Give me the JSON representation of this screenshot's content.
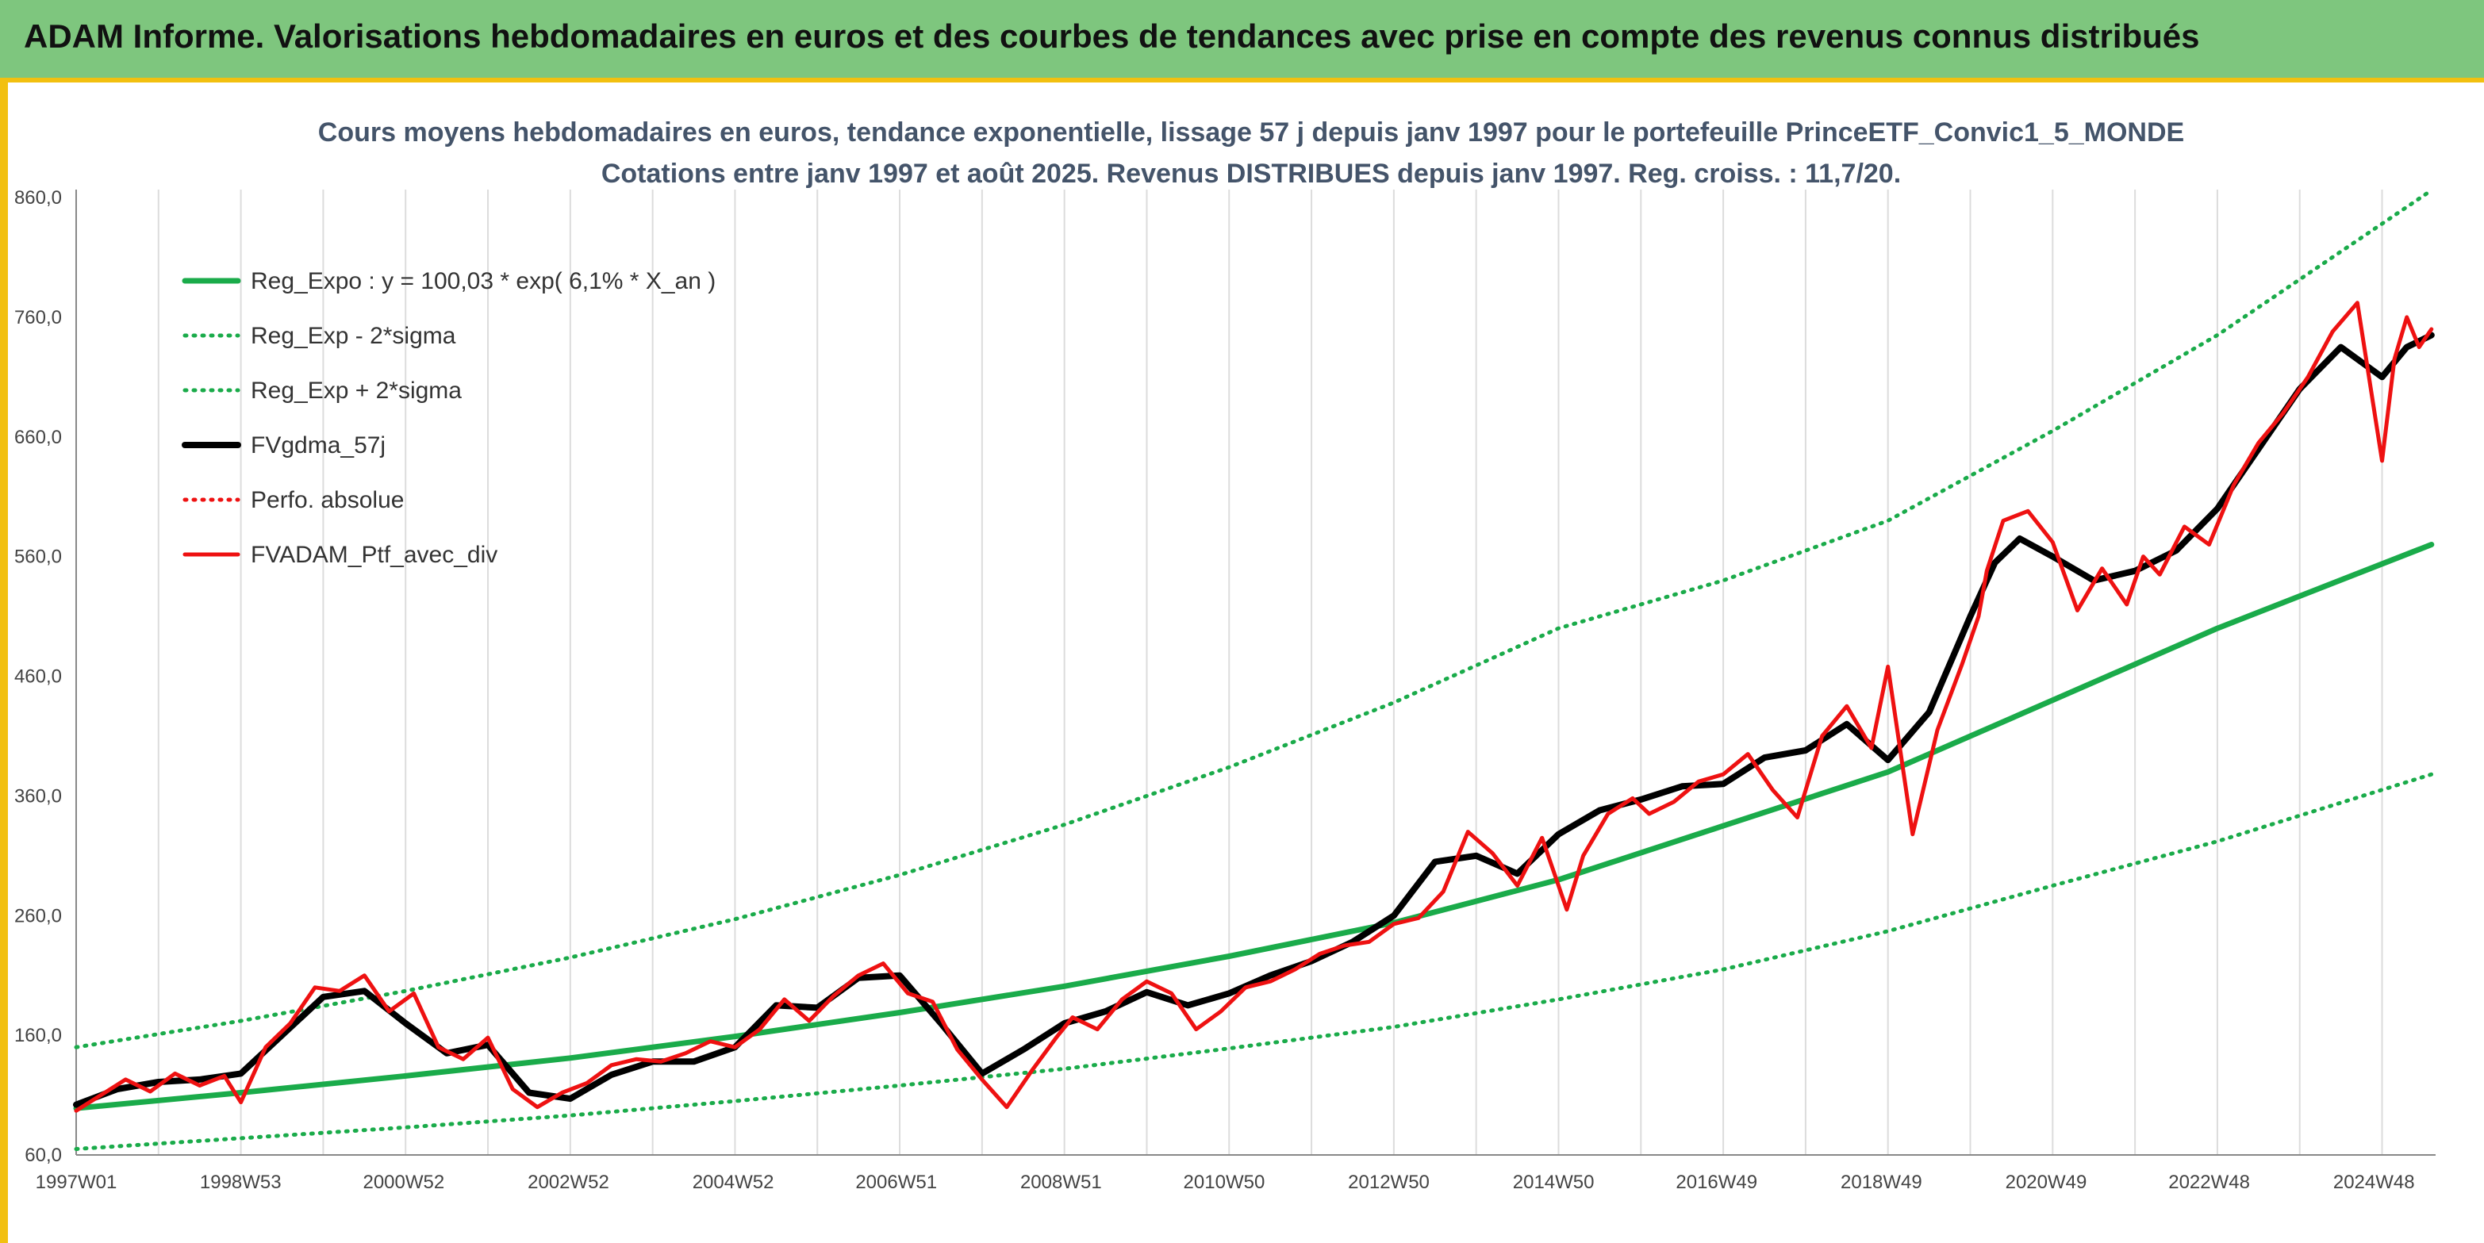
{
  "header": {
    "title": "ADAM Informe. Valorisations hebdomadaires en euros et des courbes de tendances avec prise en compte des revenus connus distribués"
  },
  "chart_data": {
    "type": "line",
    "title": "Cours moyens hebdomadaires en euros, tendance exponentielle, lissage 57 j depuis janv 1997 pour le portefeuille PrinceETF_Convic1_5_MONDE",
    "subtitle": "Cotations entre janv 1997 et août 2025. Revenus DISTRIBUES depuis janv 1997. Reg. croiss. : 11,7/20.",
    "xlabel": "",
    "ylabel": "",
    "ylim": [
      60,
      860
    ],
    "y_ticks": [
      "60,0",
      "160,0",
      "260,0",
      "360,0",
      "460,0",
      "560,0",
      "660,0",
      "760,0",
      "860,0"
    ],
    "x_range": [
      "1997W01",
      "2025W35"
    ],
    "x_ticks": [
      "1997W01",
      "1998W53",
      "2000W52",
      "2002W52",
      "2004W52",
      "2006W51",
      "2008W51",
      "2010W50",
      "2012W50",
      "2014W50",
      "2016W49",
      "2018W49",
      "2020W49",
      "2022W48",
      "2024W48"
    ],
    "grid": "vertical",
    "legend_position": "top-left",
    "colors": {
      "trend": "#1aab4a",
      "smoothed": "#000000",
      "portfolio": "#ee1111",
      "banner": "#7ec67e",
      "accent": "#f2c010"
    },
    "series": [
      {
        "name": "Reg_Expo : y = 100,03 * exp( 6,1% *  X_an )",
        "style": "solid",
        "color": "#1aab4a",
        "x": [
          1997.0,
          1999.0,
          2001.0,
          2003.0,
          2005.0,
          2007.0,
          2009.0,
          2011.0,
          2013.0,
          2015.0,
          2017.0,
          2019.0,
          2021.0,
          2023.0,
          2025.6
        ],
        "values": [
          99,
          112,
          126,
          141,
          159,
          179,
          201,
          226,
          254,
          290,
          335,
          380,
          440,
          500,
          570
        ]
      },
      {
        "name": "Reg_Exp - 2*sigma",
        "style": "dotted",
        "color": "#1aab4a",
        "x": [
          1997.0,
          1999.0,
          2001.0,
          2003.0,
          2005.0,
          2007.0,
          2009.0,
          2011.0,
          2013.0,
          2015.0,
          2017.0,
          2019.0,
          2021.0,
          2023.0,
          2025.6
        ],
        "values": [
          65,
          74,
          83,
          93,
          105,
          118,
          132,
          149,
          167,
          190,
          215,
          247,
          285,
          322,
          378
        ]
      },
      {
        "name": "Reg_Exp + 2*sigma",
        "style": "dotted",
        "color": "#1aab4a",
        "x": [
          1997.0,
          1999.0,
          2001.0,
          2003.0,
          2005.0,
          2007.0,
          2009.0,
          2011.0,
          2013.0,
          2015.0,
          2017.0,
          2019.0,
          2021.0,
          2023.0,
          2025.6
        ],
        "values": [
          150,
          172,
          197,
          225,
          257,
          294,
          336,
          384,
          438,
          500,
          540,
          590,
          665,
          745,
          866
        ]
      },
      {
        "name": "FVgdma_57j",
        "style": "solid",
        "color": "#000000",
        "x": [
          1997.0,
          1997.5,
          1998.0,
          1998.5,
          1999.0,
          1999.5,
          2000.0,
          2000.5,
          2001.0,
          2001.5,
          2002.0,
          2002.5,
          2003.0,
          2003.5,
          2004.0,
          2004.5,
          2005.0,
          2005.5,
          2006.0,
          2006.5,
          2007.0,
          2007.5,
          2008.0,
          2008.5,
          2009.0,
          2009.5,
          2010.0,
          2010.5,
          2011.0,
          2011.5,
          2012.0,
          2012.5,
          2013.0,
          2013.5,
          2014.0,
          2014.5,
          2015.0,
          2015.5,
          2016.0,
          2016.5,
          2017.0,
          2017.5,
          2018.0,
          2018.5,
          2019.0,
          2019.5,
          2020.0,
          2020.3,
          2020.6,
          2021.0,
          2021.5,
          2022.0,
          2022.5,
          2023.0,
          2023.5,
          2024.0,
          2024.5,
          2025.0,
          2025.3,
          2025.6
        ],
        "values": [
          102,
          115,
          121,
          123,
          128,
          160,
          192,
          197,
          170,
          145,
          152,
          112,
          107,
          127,
          138,
          138,
          150,
          185,
          183,
          208,
          210,
          170,
          128,
          148,
          170,
          180,
          196,
          185,
          195,
          210,
          222,
          238,
          260,
          305,
          310,
          295,
          328,
          348,
          357,
          368,
          370,
          392,
          398,
          420,
          390,
          430,
          510,
          555,
          575,
          560,
          540,
          548,
          565,
          600,
          650,
          700,
          735,
          710,
          735,
          745
        ]
      },
      {
        "name": "Perfo. absolue",
        "style": "dotted",
        "color": "#ee1111",
        "x": [],
        "values": []
      },
      {
        "name": "FVADAM_Ptf_avec_div",
        "style": "solid",
        "color": "#ee1111",
        "x": [
          1997.0,
          1997.3,
          1997.6,
          1997.9,
          1998.2,
          1998.5,
          1998.8,
          1999.0,
          1999.3,
          1999.6,
          1999.9,
          2000.2,
          2000.5,
          2000.8,
          2001.1,
          2001.4,
          2001.7,
          2002.0,
          2002.3,
          2002.6,
          2002.9,
          2003.2,
          2003.5,
          2003.8,
          2004.1,
          2004.4,
          2004.7,
          2005.0,
          2005.3,
          2005.6,
          2005.9,
          2006.2,
          2006.5,
          2006.8,
          2007.1,
          2007.4,
          2007.7,
          2008.0,
          2008.3,
          2008.6,
          2008.9,
          2009.1,
          2009.4,
          2009.7,
          2010.0,
          2010.3,
          2010.6,
          2010.9,
          2011.2,
          2011.5,
          2011.8,
          2012.1,
          2012.4,
          2012.7,
          2013.0,
          2013.3,
          2013.6,
          2013.9,
          2014.2,
          2014.5,
          2014.8,
          2015.1,
          2015.3,
          2015.6,
          2015.9,
          2016.1,
          2016.4,
          2016.7,
          2017.0,
          2017.3,
          2017.6,
          2017.9,
          2018.2,
          2018.5,
          2018.8,
          2019.0,
          2019.3,
          2019.6,
          2019.9,
          2020.1,
          2020.2,
          2020.4,
          2020.7,
          2021.0,
          2021.3,
          2021.6,
          2021.9,
          2022.1,
          2022.3,
          2022.6,
          2022.9,
          2023.2,
          2023.5,
          2023.8,
          2024.1,
          2024.4,
          2024.7,
          2025.0,
          2025.15,
          2025.3,
          2025.45,
          2025.6
        ],
        "values": [
          97,
          110,
          123,
          113,
          128,
          118,
          126,
          104,
          150,
          170,
          200,
          197,
          210,
          180,
          195,
          150,
          140,
          158,
          115,
          100,
          112,
          120,
          135,
          140,
          138,
          145,
          155,
          150,
          165,
          190,
          172,
          193,
          210,
          220,
          195,
          188,
          148,
          123,
          100,
          130,
          158,
          175,
          165,
          190,
          205,
          195,
          165,
          180,
          200,
          205,
          215,
          228,
          235,
          238,
          253,
          258,
          280,
          330,
          312,
          285,
          325,
          265,
          310,
          345,
          358,
          345,
          355,
          372,
          378,
          395,
          365,
          342,
          410,
          435,
          400,
          468,
          328,
          415,
          470,
          510,
          548,
          590,
          598,
          572,
          515,
          550,
          520,
          560,
          545,
          585,
          570,
          620,
          655,
          680,
          710,
          748,
          772,
          640,
          725,
          760,
          735,
          750
        ]
      }
    ]
  }
}
